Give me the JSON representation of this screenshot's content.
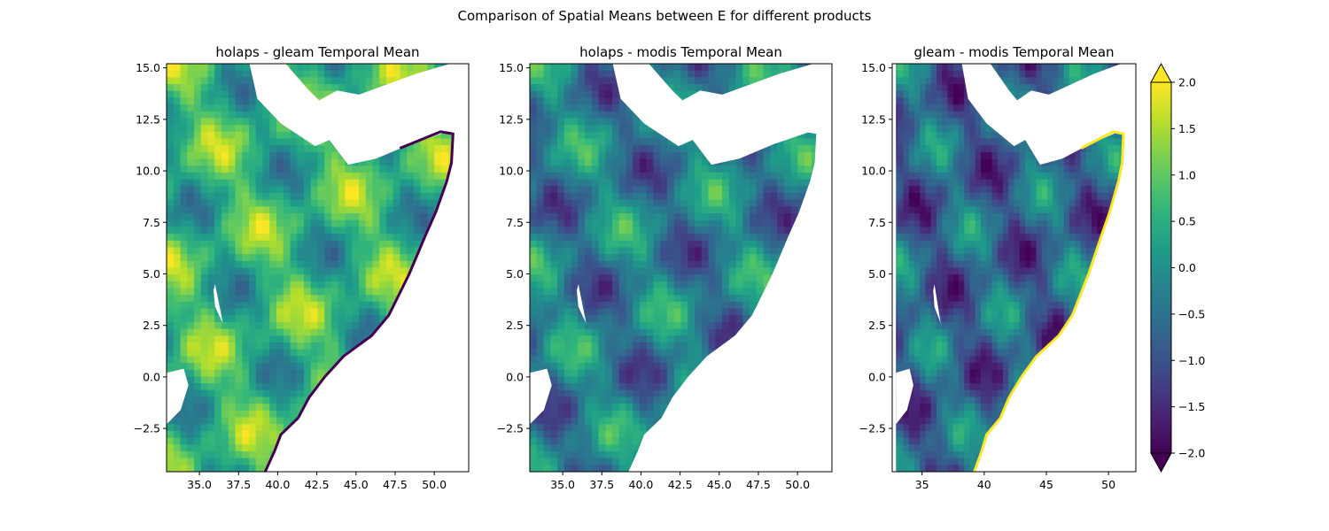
{
  "figure": {
    "suptitle": "Comparison of Spatial Means between E for different products"
  },
  "chart_data": [
    {
      "type": "heatmap",
      "title": "holaps - gleam Temporal Mean",
      "xlim": [
        32.9,
        52.2
      ],
      "ylim": [
        -4.6,
        15.2
      ],
      "xticks": [
        35.0,
        37.5,
        40.0,
        42.5,
        45.0,
        47.5,
        50.0
      ],
      "xtick_labels": [
        "35.0",
        "37.5",
        "40.0",
        "42.5",
        "45.0",
        "47.5",
        "50.0"
      ],
      "yticks": [
        -2.5,
        0.0,
        2.5,
        5.0,
        7.5,
        10.0,
        12.5,
        15.0
      ],
      "ytick_labels": [
        "−2.5",
        "0.0",
        "2.5",
        "5.0",
        "7.5",
        "10.0",
        "12.5",
        "15.0"
      ],
      "field_bias": 0.6,
      "coast_highlight": "low"
    },
    {
      "type": "heatmap",
      "title": "holaps - modis Temporal Mean",
      "xlim": [
        32.9,
        52.2
      ],
      "ylim": [
        -4.6,
        15.2
      ],
      "xticks": [
        35.0,
        37.5,
        40.0,
        42.5,
        45.0,
        47.5,
        50.0
      ],
      "xtick_labels": [
        "35.0",
        "37.5",
        "40.0",
        "42.5",
        "45.0",
        "47.5",
        "50.0"
      ],
      "yticks": [
        -2.5,
        0.0,
        2.5,
        5.0,
        7.5,
        10.0,
        12.5,
        15.0
      ],
      "ytick_labels": [
        "−2.5",
        "0.0",
        "2.5",
        "5.0",
        "7.5",
        "10.0",
        "12.5",
        "15.0"
      ],
      "field_bias": -0.3,
      "coast_highlight": "none"
    },
    {
      "type": "heatmap",
      "title": "gleam - modis Temporal Mean",
      "xlim": [
        32.6,
        52.2
      ],
      "ylim": [
        -4.6,
        15.2
      ],
      "xticks": [
        35,
        40,
        45,
        50
      ],
      "xtick_labels": [
        "35",
        "40",
        "45",
        "50"
      ],
      "yticks": [
        -2.5,
        0.0,
        2.5,
        5.0,
        7.5,
        10.0,
        12.5,
        15.0
      ],
      "ytick_labels": [
        "−2.5",
        "0.0",
        "2.5",
        "5.0",
        "7.5",
        "10.0",
        "12.5",
        "15.0"
      ],
      "field_bias": -0.7,
      "coast_highlight": "high"
    }
  ],
  "colorbar": {
    "colormap": "viridis",
    "vmin": -2.0,
    "vmax": 2.0,
    "extend": "both",
    "ticks": [
      -2.0,
      -1.5,
      -1.0,
      -0.5,
      0.0,
      0.5,
      1.0,
      1.5,
      2.0
    ],
    "tick_labels": [
      "−2.0",
      "−1.5",
      "−1.0",
      "−0.5",
      "0.0",
      "0.5",
      "1.0",
      "1.5",
      "2.0"
    ]
  }
}
